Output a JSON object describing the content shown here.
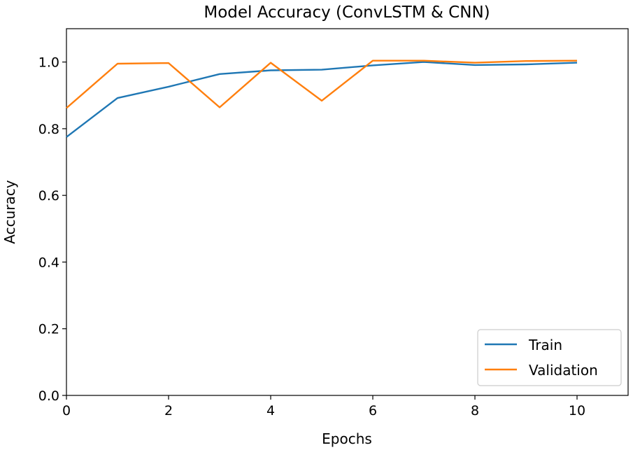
{
  "chart_data": {
    "type": "line",
    "title": "Model Accuracy (ConvLSTM & CNN)",
    "xlabel": "Epochs",
    "ylabel": "Accuracy",
    "xlim": [
      0,
      11
    ],
    "ylim": [
      0.0,
      1.1
    ],
    "xticks": [
      0,
      2,
      4,
      6,
      8,
      10
    ],
    "yticks": [
      0.0,
      0.2,
      0.4,
      0.6,
      0.8,
      1.0
    ],
    "xtick_labels": [
      "0",
      "2",
      "4",
      "6",
      "8",
      "10"
    ],
    "ytick_labels": [
      "0.0",
      "0.2",
      "0.4",
      "0.6",
      "0.8",
      "1.0"
    ],
    "grid": false,
    "legend_position": "lower right",
    "x": [
      0,
      1,
      2,
      3,
      4,
      5,
      6,
      7,
      8,
      9,
      10
    ],
    "series": [
      {
        "name": "Train",
        "color": "#1f77b4",
        "values": [
          0.775,
          0.892,
          0.926,
          0.964,
          0.975,
          0.977,
          0.99,
          1.0,
          0.991,
          0.993,
          0.998
        ]
      },
      {
        "name": "Validation",
        "color": "#ff7f0e",
        "values": [
          0.862,
          0.995,
          0.997,
          0.864,
          0.998,
          0.884,
          1.004,
          1.004,
          0.998,
          1.003,
          1.004
        ]
      }
    ]
  }
}
